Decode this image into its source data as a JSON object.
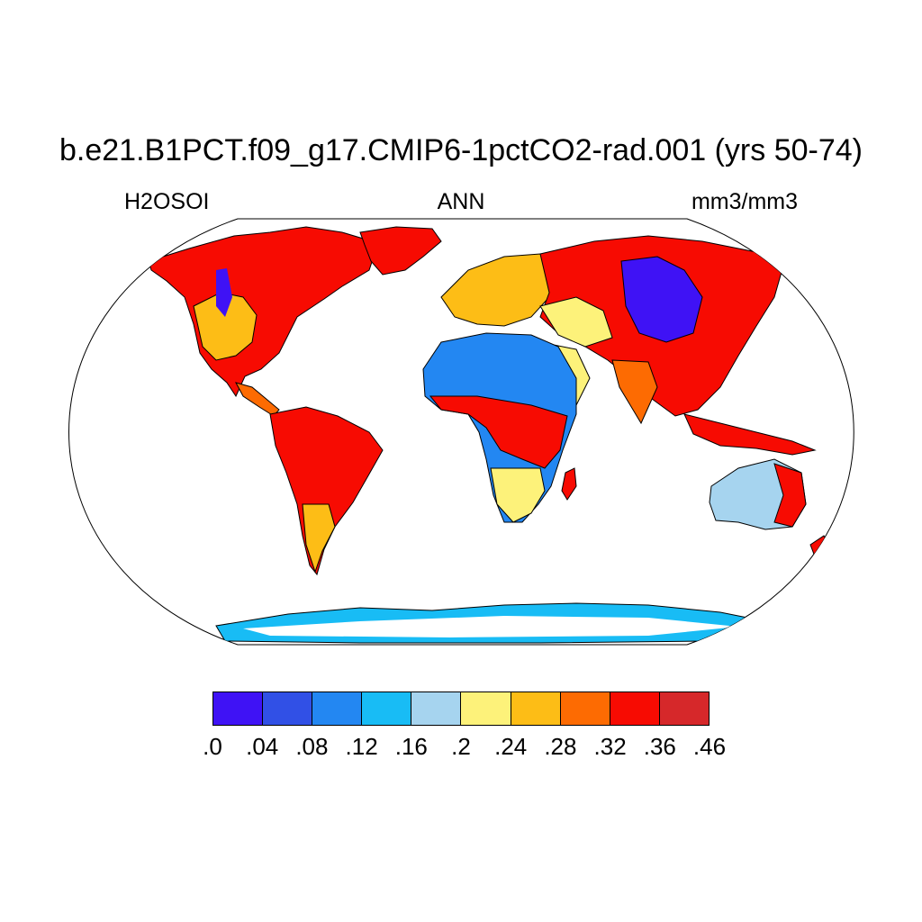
{
  "title": "b.e21.B1PCT.f09_g17.CMIP6-1pctCO2-rad.001 (yrs 50-74)",
  "variable": "H2OSOI",
  "period": "ANN",
  "units": "mm3/mm3",
  "projection": "Robinson",
  "colorbar": {
    "labels": [
      ".0",
      ".04",
      ".08",
      ".12",
      ".16",
      ".2",
      ".24",
      ".28",
      ".32",
      ".36",
      ".46"
    ],
    "colors": [
      "#3f12f5",
      "#3150e6",
      "#2387f2",
      "#18bcf5",
      "#a6d4ef",
      "#fdf27a",
      "#fdbd16",
      "#fd6b02",
      "#f70b02",
      "#d6282a"
    ]
  }
}
